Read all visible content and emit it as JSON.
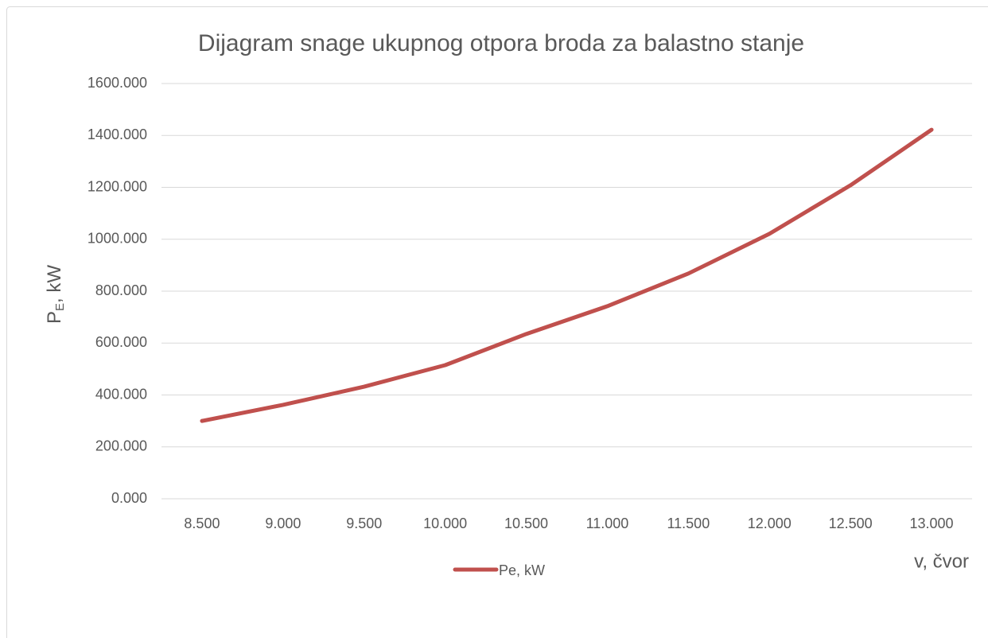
{
  "chart_data": {
    "type": "line",
    "title": "Dijagram snage ukupnog otpora broda za balastno stanje",
    "y_label": {
      "main": "P",
      "sub": "E",
      "rest": ", kW"
    },
    "x_label": "v, čvor",
    "categories": [
      "8.500",
      "9.000",
      "9.500",
      "10.000",
      "10.500",
      "11.000",
      "11.500",
      "12.000",
      "12.500",
      "13.000"
    ],
    "series": [
      {
        "name": "Pe, kW",
        "color": "#c0504d",
        "values": [
          300,
          362,
          432,
          515,
          635,
          742,
          868,
          1021,
          1208,
          1422
        ]
      }
    ],
    "ylim": [
      0,
      1600
    ],
    "yticks": [
      {
        "value": 0,
        "label": "0.000"
      },
      {
        "value": 200,
        "label": "200.000"
      },
      {
        "value": 400,
        "label": "400.000"
      },
      {
        "value": 600,
        "label": "600.000"
      },
      {
        "value": 800,
        "label": "800.000"
      },
      {
        "value": 1000,
        "label": "1000.000"
      },
      {
        "value": 1200,
        "label": "1200.000"
      },
      {
        "value": 1400,
        "label": "1400.000"
      },
      {
        "value": 1600,
        "label": "1600.000"
      }
    ],
    "grid": true,
    "legend": "bottom"
  }
}
